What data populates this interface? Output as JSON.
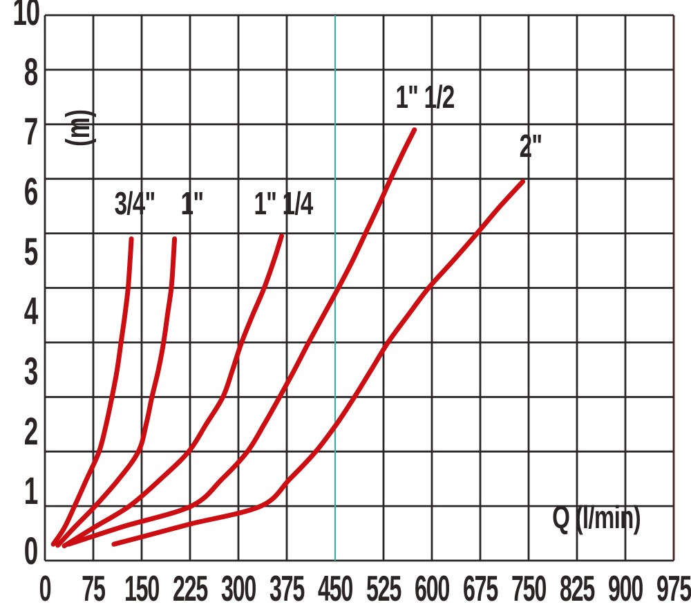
{
  "page": {
    "background": "#ffffff"
  },
  "chart_data": {
    "type": "line",
    "title": "",
    "xlabel": "Q (l/min)",
    "ylabel": "(m)",
    "xlim": [
      0,
      975
    ],
    "ylim": [
      0,
      10
    ],
    "grid": true,
    "legend_position": "labels-near-curves",
    "x_tick_labels": [
      "0",
      "75",
      "150",
      "225",
      "300",
      "375",
      "450",
      "525",
      "600",
      "675",
      "750",
      "825",
      "900",
      "975"
    ],
    "y_tick_labels": [
      "10",
      "8",
      "7",
      "6",
      "5",
      "4",
      "3",
      "2",
      "1",
      "0"
    ],
    "highlight_vline_at_x": 450,
    "colors": {
      "curve": "#cc0d12",
      "grid": "#2a2627",
      "text": "#2a2425",
      "highlight_gridline": "#3fada3",
      "right_border": "#46201f",
      "background": "#ffffff"
    },
    "series": [
      {
        "name": "3/4\"",
        "slug": "3-4in",
        "label_at": [
          139,
          6.55
        ],
        "points": [
          [
            13,
            0.3
          ],
          [
            30,
            0.6
          ],
          [
            46,
            1
          ],
          [
            65,
            1.5
          ],
          [
            84,
            2
          ],
          [
            95,
            2.5
          ],
          [
            104,
            3
          ],
          [
            112,
            3.5
          ],
          [
            118,
            4
          ],
          [
            124,
            4.5
          ],
          [
            129,
            5
          ],
          [
            132,
            5.5
          ],
          [
            134,
            5.9
          ]
        ]
      },
      {
        "name": "1\"",
        "slug": "1in",
        "label_at": [
          228,
          6.55
        ],
        "points": [
          [
            20,
            0.28
          ],
          [
            45,
            0.6
          ],
          [
            78,
            1
          ],
          [
            115,
            1.5
          ],
          [
            145,
            2
          ],
          [
            157,
            2.5
          ],
          [
            166,
            3
          ],
          [
            176,
            3.5
          ],
          [
            184,
            4
          ],
          [
            190,
            4.5
          ],
          [
            196,
            5
          ],
          [
            199,
            5.5
          ],
          [
            201,
            5.9
          ]
        ]
      },
      {
        "name": "1\" 1/4",
        "slug": "1in-1-4",
        "label_at": [
          370,
          6.55
        ],
        "points": [
          [
            30,
            0.27
          ],
          [
            75,
            0.6
          ],
          [
            131,
            1
          ],
          [
            180,
            1.5
          ],
          [
            223,
            2
          ],
          [
            250,
            2.5
          ],
          [
            276,
            3
          ],
          [
            291,
            3.5
          ],
          [
            305,
            4
          ],
          [
            322,
            4.5
          ],
          [
            340,
            5
          ],
          [
            355,
            5.5
          ],
          [
            367,
            5.95
          ]
        ]
      },
      {
        "name": "1\" 1/2",
        "slug": "1in-1-2",
        "label_at": [
          589,
          8.5
        ],
        "points": [
          [
            37,
            0.3
          ],
          [
            120,
            0.62
          ],
          [
            227,
            1
          ],
          [
            275,
            1.5
          ],
          [
            314,
            2
          ],
          [
            340,
            2.5
          ],
          [
            364,
            3
          ],
          [
            387,
            3.5
          ],
          [
            409,
            4
          ],
          [
            432,
            4.5
          ],
          [
            455,
            5
          ],
          [
            477,
            5.5
          ],
          [
            497,
            6
          ],
          [
            517,
            6.5
          ],
          [
            536,
            7
          ],
          [
            556,
            7.5
          ],
          [
            573,
            7.9
          ]
        ]
      },
      {
        "name": "2\"",
        "slug": "2in",
        "label_at": [
          753,
          7.6
        ],
        "points": [
          [
            107,
            0.3
          ],
          [
            155,
            0.45
          ],
          [
            225,
            0.67
          ],
          [
            335,
            1
          ],
          [
            380,
            1.5
          ],
          [
            420,
            2
          ],
          [
            452,
            2.5
          ],
          [
            480,
            3
          ],
          [
            506,
            3.5
          ],
          [
            532,
            4
          ],
          [
            563,
            4.5
          ],
          [
            595,
            5
          ],
          [
            633,
            5.5
          ],
          [
            670,
            6
          ],
          [
            706,
            6.5
          ],
          [
            741,
            6.95
          ]
        ]
      }
    ]
  }
}
